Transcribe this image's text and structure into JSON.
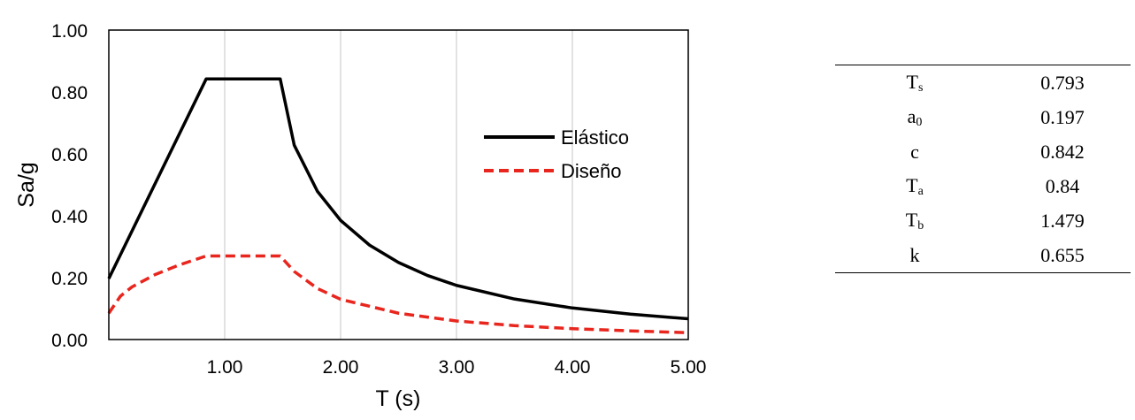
{
  "chart_data": {
    "type": "line",
    "xlabel": "T (s)",
    "ylabel": "Sa/g",
    "xlim": [
      0,
      5
    ],
    "ylim": [
      0,
      1
    ],
    "x_ticks": [
      "1.00",
      "2.00",
      "3.00",
      "4.00",
      "5.00"
    ],
    "y_ticks": [
      "0.00",
      "0.20",
      "0.40",
      "0.60",
      "0.80",
      "1.00"
    ],
    "grid": "vertical",
    "legend_position": "right",
    "series": [
      {
        "name": "Elástico",
        "color": "#000000",
        "style": "solid",
        "x": [
          0.0,
          0.84,
          1.479,
          1.6,
          1.8,
          2.0,
          2.25,
          2.5,
          2.75,
          3.0,
          3.5,
          4.0,
          4.5,
          5.0
        ],
        "y": [
          0.197,
          0.842,
          0.842,
          0.628,
          0.479,
          0.385,
          0.305,
          0.249,
          0.207,
          0.175,
          0.131,
          0.102,
          0.082,
          0.067
        ]
      },
      {
        "name": "Diseño",
        "color": "#e8261e",
        "style": "dashed",
        "x": [
          0.0,
          0.1,
          0.2,
          0.4,
          0.6,
          0.84,
          1.479,
          1.6,
          1.8,
          2.0,
          2.5,
          3.0,
          3.5,
          4.0,
          4.5,
          5.0
        ],
        "y": [
          0.085,
          0.14,
          0.17,
          0.21,
          0.24,
          0.27,
          0.27,
          0.22,
          0.165,
          0.13,
          0.085,
          0.06,
          0.045,
          0.035,
          0.028,
          0.022
        ]
      }
    ]
  },
  "table": {
    "rows": [
      {
        "name": "T",
        "sub": "s",
        "value": "0.793"
      },
      {
        "name": "a",
        "sub": "0",
        "value": "0.197"
      },
      {
        "name": "c",
        "sub": "",
        "value": "0.842"
      },
      {
        "name": "T",
        "sub": "a",
        "value": "0.84"
      },
      {
        "name": "T",
        "sub": "b",
        "value": "1.479"
      },
      {
        "name": "k",
        "sub": "",
        "value": "0.655"
      }
    ]
  }
}
